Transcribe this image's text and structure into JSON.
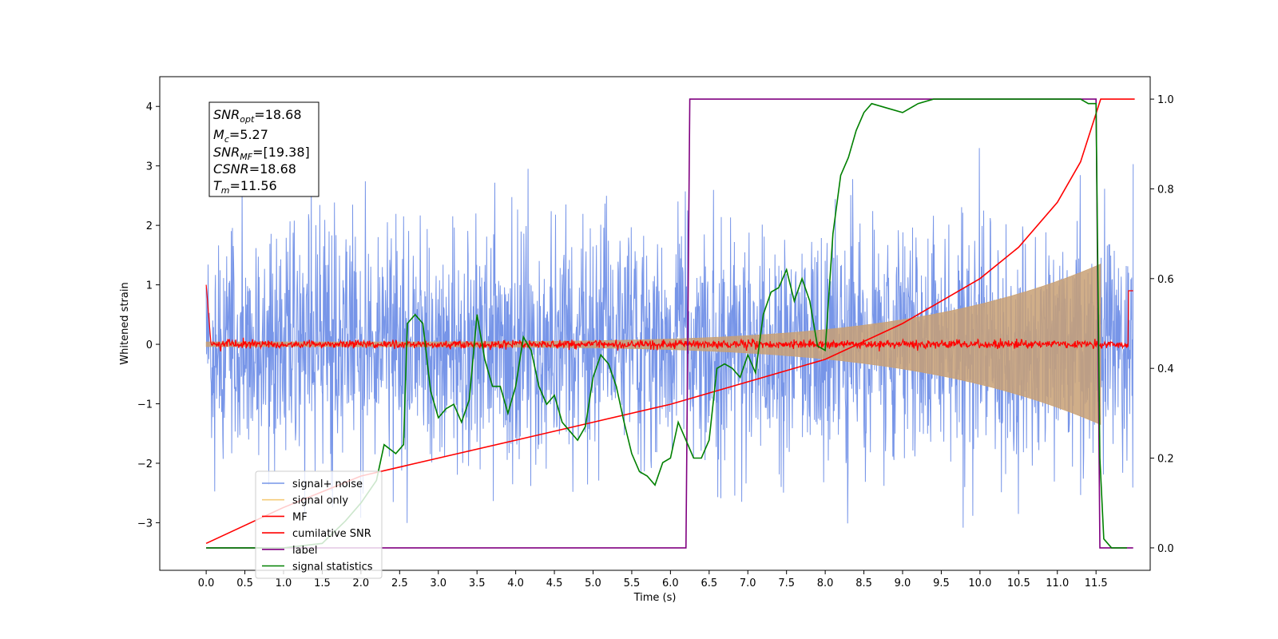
{
  "chart_data": {
    "type": "line",
    "xlabel": "Time (s)",
    "ylabel": "Whitened strain",
    "xlim": [
      -0.6,
      12.2
    ],
    "ylim": [
      -3.8,
      4.5
    ],
    "y2lim": [
      -0.05,
      1.05
    ],
    "xticks": [
      "0.0",
      "0.5",
      "1.0",
      "1.5",
      "2.0",
      "2.5",
      "3.0",
      "3.5",
      "4.0",
      "4.5",
      "5.0",
      "5.5",
      "6.0",
      "6.5",
      "7.0",
      "7.5",
      "8.0",
      "8.5",
      "9.0",
      "9.5",
      "10.0",
      "10.5",
      "11.0",
      "11.5"
    ],
    "yticks": [
      "−3",
      "−2",
      "−1",
      "0",
      "1",
      "2",
      "3",
      "4"
    ],
    "y2ticks": [
      "0.0",
      "0.2",
      "0.4",
      "0.6",
      "0.8",
      "1.0"
    ],
    "grid": false,
    "legend_position": "lower-left",
    "annotation": {
      "snr_opt": "=18.68",
      "mc": "=5.27",
      "snr_mf": "=[19.38]",
      "csnr": "=18.68",
      "tm": "=11.56"
    },
    "series": [
      {
        "name": "signal+ noise",
        "color": "#7795e8",
        "axis": "left",
        "kind": "noise",
        "x_range": [
          0.0,
          11.98
        ],
        "amplitude_sigma": 1.0,
        "peak_max": 4.18,
        "peak_min": -3.5
      },
      {
        "name": "signal only",
        "color": "#c8a074",
        "axis": "left",
        "kind": "chirp",
        "x_range": [
          0.0,
          11.56
        ],
        "envelope_start": 0.04,
        "envelope_end": 1.35
      },
      {
        "name": "MF",
        "color": "#ff0000",
        "axis": "left",
        "kind": "mf",
        "x_range": [
          0.0,
          11.98
        ],
        "level": 0.0
      },
      {
        "name": "cumilative SNR",
        "color": "#ff0000",
        "axis": "right",
        "x": [
          0.0,
          1.0,
          2.0,
          3.0,
          4.0,
          5.0,
          6.0,
          7.0,
          8.0,
          9.0,
          10.0,
          10.5,
          11.0,
          11.3,
          11.56,
          12.0
        ],
        "values": [
          0.01,
          0.09,
          0.16,
          0.2,
          0.24,
          0.28,
          0.32,
          0.37,
          0.42,
          0.5,
          0.6,
          0.67,
          0.77,
          0.86,
          1.0,
          1.0
        ]
      },
      {
        "name": "label",
        "color": "#800080",
        "axis": "right",
        "x": [
          0.0,
          6.2,
          6.25,
          11.5,
          11.55,
          11.98
        ],
        "values": [
          0.0,
          0.0,
          1.0,
          1.0,
          0.0,
          0.0
        ]
      },
      {
        "name": "signal statistics",
        "color": "#008000",
        "axis": "right",
        "x": [
          0.0,
          0.5,
          1.0,
          1.5,
          1.8,
          2.0,
          2.2,
          2.3,
          2.45,
          2.55,
          2.6,
          2.7,
          2.8,
          2.9,
          3.0,
          3.1,
          3.2,
          3.3,
          3.4,
          3.5,
          3.6,
          3.7,
          3.8,
          3.9,
          4.0,
          4.1,
          4.2,
          4.3,
          4.4,
          4.5,
          4.6,
          4.7,
          4.8,
          4.9,
          5.0,
          5.1,
          5.2,
          5.3,
          5.4,
          5.5,
          5.6,
          5.7,
          5.8,
          5.9,
          6.0,
          6.1,
          6.2,
          6.3,
          6.4,
          6.5,
          6.6,
          6.7,
          6.8,
          6.9,
          7.0,
          7.1,
          7.2,
          7.3,
          7.4,
          7.5,
          7.6,
          7.7,
          7.8,
          7.9,
          8.0,
          8.1,
          8.2,
          8.3,
          8.4,
          8.5,
          8.6,
          8.8,
          9.0,
          9.2,
          9.4,
          9.6,
          10.0,
          10.5,
          11.0,
          11.3,
          11.4,
          11.5,
          11.55,
          11.6,
          11.7,
          11.9
        ],
        "values": [
          0.0,
          0.0,
          0.0,
          0.01,
          0.06,
          0.1,
          0.15,
          0.23,
          0.21,
          0.23,
          0.5,
          0.52,
          0.5,
          0.35,
          0.29,
          0.31,
          0.32,
          0.28,
          0.33,
          0.52,
          0.42,
          0.36,
          0.36,
          0.3,
          0.36,
          0.47,
          0.44,
          0.36,
          0.32,
          0.34,
          0.28,
          0.26,
          0.24,
          0.27,
          0.38,
          0.43,
          0.41,
          0.36,
          0.28,
          0.21,
          0.17,
          0.16,
          0.14,
          0.19,
          0.2,
          0.28,
          0.24,
          0.2,
          0.2,
          0.24,
          0.4,
          0.41,
          0.4,
          0.38,
          0.43,
          0.39,
          0.52,
          0.57,
          0.58,
          0.62,
          0.55,
          0.6,
          0.55,
          0.45,
          0.44,
          0.7,
          0.83,
          0.87,
          0.93,
          0.97,
          0.99,
          0.98,
          0.97,
          0.99,
          1.0,
          1.0,
          1.0,
          1.0,
          1.0,
          1.0,
          0.99,
          0.99,
          0.2,
          0.02,
          0.0,
          0.0
        ]
      }
    ]
  }
}
